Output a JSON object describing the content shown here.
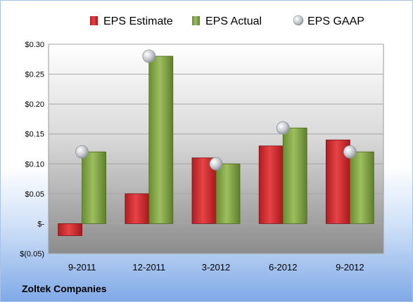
{
  "company": "Zoltek Companies",
  "chart_data": {
    "type": "bar",
    "categories": [
      "9-2011",
      "12-2011",
      "3-2012",
      "6-2012",
      "9-2012"
    ],
    "series": [
      {
        "name": "EPS Estimate",
        "values": [
          -0.02,
          0.05,
          0.11,
          0.13,
          0.14
        ],
        "color": "#d8262b"
      },
      {
        "name": "EPS Actual",
        "values": [
          0.12,
          0.28,
          0.1,
          0.16,
          0.12
        ],
        "color": "#86ab46"
      }
    ],
    "markers": {
      "name": "EPS GAAP",
      "values": [
        0.12,
        0.28,
        0.1,
        0.16,
        0.12
      ],
      "color": "#c4c8cc"
    },
    "yticks": [
      {
        "value": 0.3,
        "label": "$0.30"
      },
      {
        "value": 0.25,
        "label": "$0.25"
      },
      {
        "value": 0.2,
        "label": "$0.20"
      },
      {
        "value": 0.15,
        "label": "$0.15"
      },
      {
        "value": 0.1,
        "label": "$0.10"
      },
      {
        "value": 0.05,
        "label": "$0.05"
      },
      {
        "value": 0.0,
        "label": "$-"
      },
      {
        "value": -0.05,
        "label": "$(0.05)"
      }
    ],
    "ylim": [
      -0.05,
      0.3
    ],
    "grid": true,
    "legend": "top"
  }
}
